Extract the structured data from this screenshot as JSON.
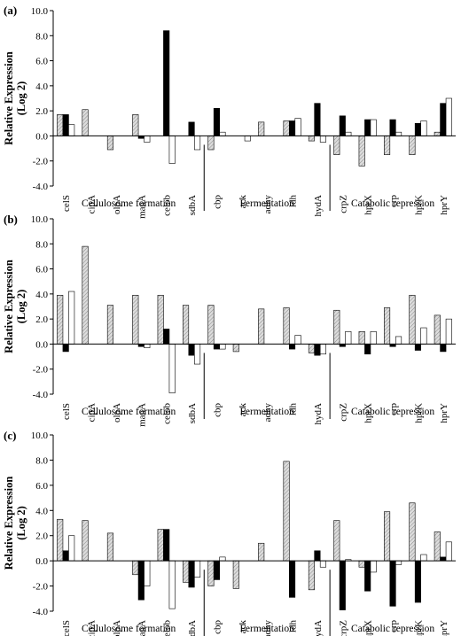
{
  "colors": {
    "series_hatched": "#c9c9c9",
    "series_black": "#000000",
    "series_white": "#ffffff",
    "axis": "#000000"
  },
  "chart_data": [
    {
      "type": "bar",
      "panel_label": "(a)",
      "ylabel": [
        "Relative Expression",
        "(Log 2)"
      ],
      "ylim": [
        -4,
        10
      ],
      "yticks": [
        "-4.0",
        "-2.0",
        "0.0",
        "2.0",
        "4.0",
        "6.0",
        "8.0",
        "10.0"
      ],
      "grid": false,
      "categories": [
        "celS",
        "cipA",
        "olpA",
        "manA",
        "celob",
        "sdbA",
        "cbp",
        "ack",
        "adhy",
        "ldh",
        "hydA",
        "crpZ",
        "hprX",
        "crp",
        "hprK",
        "hprY"
      ],
      "groups": [
        {
          "label": "Cellulosome formation",
          "start": 0,
          "end": 5
        },
        {
          "label": "Fermentation",
          "start": 6,
          "end": 10
        },
        {
          "label": "Catabolic repression",
          "start": 11,
          "end": 15
        }
      ],
      "series": [
        {
          "style": "hatched",
          "values": [
            1.7,
            2.1,
            -1.1,
            1.7,
            0.0,
            0.0,
            -1.1,
            0.0,
            1.1,
            1.2,
            -0.4,
            -1.5,
            -2.4,
            -1.5,
            -1.5,
            0.3
          ]
        },
        {
          "style": "black",
          "values": [
            1.7,
            0.0,
            0.0,
            -0.2,
            8.4,
            1.1,
            2.2,
            0.0,
            0.0,
            1.2,
            2.6,
            1.6,
            1.3,
            1.3,
            1.0,
            2.6
          ]
        },
        {
          "style": "white",
          "values": [
            0.9,
            0.0,
            0.0,
            -0.5,
            -2.2,
            -1.1,
            0.3,
            -0.4,
            0.0,
            1.4,
            -0.5,
            0.3,
            1.3,
            0.3,
            1.2,
            3.0
          ]
        }
      ]
    },
    {
      "type": "bar",
      "panel_label": "(b)",
      "ylabel": [
        "Relative Expression",
        "(Log 2)"
      ],
      "ylim": [
        -4,
        10
      ],
      "yticks": [
        "-4.0",
        "-2.0",
        "0.0",
        "2.0",
        "4.0",
        "6.0",
        "8.0",
        "10.0"
      ],
      "grid": false,
      "categories": [
        "celS",
        "cipA",
        "olpA",
        "manA",
        "celob",
        "sdbA",
        "cbp",
        "ack",
        "adhy",
        "ldh",
        "hydA",
        "crpZ",
        "hprX",
        "crp",
        "hprK",
        "hprY"
      ],
      "groups": [
        {
          "label": "Cellulosome formation",
          "start": 0,
          "end": 5
        },
        {
          "label": "Fermentation",
          "start": 6,
          "end": 10
        },
        {
          "label": "Catabolic repression",
          "start": 11,
          "end": 15
        }
      ],
      "series": [
        {
          "style": "hatched",
          "values": [
            3.9,
            7.8,
            3.1,
            3.9,
            3.9,
            3.1,
            3.1,
            -0.6,
            2.8,
            2.9,
            -0.7,
            2.7,
            1.0,
            2.9,
            3.9,
            2.3
          ]
        },
        {
          "style": "black",
          "values": [
            -0.6,
            0.0,
            0.0,
            -0.2,
            1.2,
            -0.9,
            -0.4,
            0.0,
            0.0,
            -0.4,
            -0.9,
            -0.2,
            -0.8,
            -0.2,
            -0.5,
            -0.6
          ]
        },
        {
          "style": "white",
          "values": [
            4.2,
            0.0,
            0.0,
            -0.3,
            -3.9,
            -1.6,
            -0.4,
            0.0,
            0.0,
            0.7,
            -0.8,
            1.0,
            1.0,
            0.6,
            1.3,
            2.0
          ]
        }
      ]
    },
    {
      "type": "bar",
      "panel_label": "(c)",
      "ylabel": [
        "Relative Expression",
        "(Log 2)"
      ],
      "ylim": [
        -4,
        10
      ],
      "yticks": [
        "-4.0",
        "-2.0",
        "0.0",
        "2.0",
        "4.0",
        "6.0",
        "8.0",
        "10.0"
      ],
      "grid": false,
      "categories": [
        "celS",
        "cipA",
        "olpA",
        "manA",
        "celob",
        "sdbA",
        "cbp",
        "ack",
        "adhy",
        "ldh",
        "hydA",
        "crpZ",
        "hprX",
        "crp",
        "hprK",
        "hprY"
      ],
      "groups": [
        {
          "label": "Cellulosome formation",
          "start": 0,
          "end": 5
        },
        {
          "label": "Fermentation",
          "start": 6,
          "end": 10
        },
        {
          "label": "Catabolic repression",
          "start": 11,
          "end": 15
        }
      ],
      "series": [
        {
          "style": "hatched",
          "values": [
            3.3,
            3.2,
            2.2,
            -1.1,
            2.5,
            -1.7,
            -2.0,
            -2.2,
            1.4,
            7.9,
            -2.3,
            3.2,
            -0.5,
            3.9,
            4.6,
            2.3
          ]
        },
        {
          "style": "black",
          "values": [
            0.8,
            0.0,
            0.0,
            -3.1,
            2.5,
            -2.1,
            -1.5,
            0.0,
            0.0,
            -2.9,
            0.8,
            -3.9,
            -2.4,
            -3.6,
            -3.3,
            0.3
          ]
        },
        {
          "style": "white",
          "values": [
            2.0,
            0.0,
            0.0,
            -2.0,
            -3.8,
            -1.3,
            0.3,
            0.0,
            0.0,
            0.0,
            -0.5,
            0.1,
            -0.9,
            -0.3,
            0.5,
            1.5
          ]
        }
      ]
    }
  ]
}
